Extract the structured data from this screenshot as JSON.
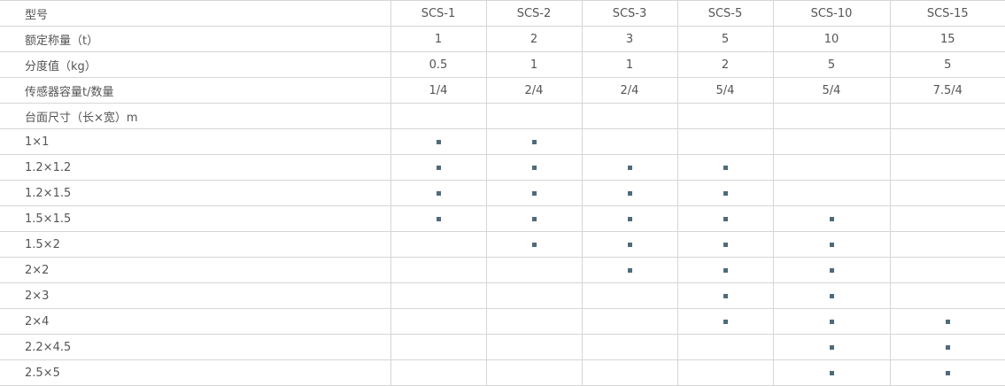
{
  "columns": [
    "型号",
    "SCS-1",
    "SCS-2",
    "SCS-3",
    "SCS-5",
    "SCS-10",
    "SCS-15"
  ],
  "rows": [
    {
      "label": "额定称量（t）",
      "values": [
        "1",
        "2",
        "3",
        "5",
        "10",
        "15"
      ]
    },
    {
      "label": "分度值（kg）",
      "values": [
        "0.5",
        "1",
        "1",
        "2",
        "5",
        "5"
      ]
    },
    {
      "label": "传感器容量t/数量",
      "values": [
        "1/4",
        "2/4",
        "2/4",
        "5/4",
        "5/4",
        "7.5/4"
      ]
    },
    {
      "label": "台面尺寸（长×宽）m",
      "values": [
        "",
        "",
        "",
        "",
        "",
        ""
      ]
    }
  ],
  "size_rows": [
    {
      "label": "1×1",
      "available": [
        true,
        true,
        false,
        false,
        false,
        false
      ]
    },
    {
      "label": "1.2×1.2",
      "available": [
        true,
        true,
        true,
        true,
        false,
        false
      ]
    },
    {
      "label": "1.2×1.5",
      "available": [
        true,
        true,
        true,
        true,
        false,
        false
      ]
    },
    {
      "label": "1.5×1.5",
      "available": [
        true,
        true,
        true,
        true,
        true,
        false
      ]
    },
    {
      "label": "1.5×2",
      "available": [
        false,
        true,
        true,
        true,
        true,
        false
      ]
    },
    {
      "label": "2×2",
      "available": [
        false,
        false,
        true,
        true,
        true,
        false
      ]
    },
    {
      "label": "2×3",
      "available": [
        false,
        false,
        false,
        true,
        true,
        false
      ]
    },
    {
      "label": "2×4",
      "available": [
        false,
        false,
        false,
        true,
        true,
        true
      ]
    },
    {
      "label": "2.2×4.5",
      "available": [
        false,
        false,
        false,
        false,
        true,
        true
      ]
    },
    {
      "label": "2.5×5",
      "available": [
        false,
        false,
        false,
        false,
        true,
        true
      ]
    }
  ],
  "marker_icon": "square-bullet-icon",
  "marker_color": "#4f6b7b"
}
